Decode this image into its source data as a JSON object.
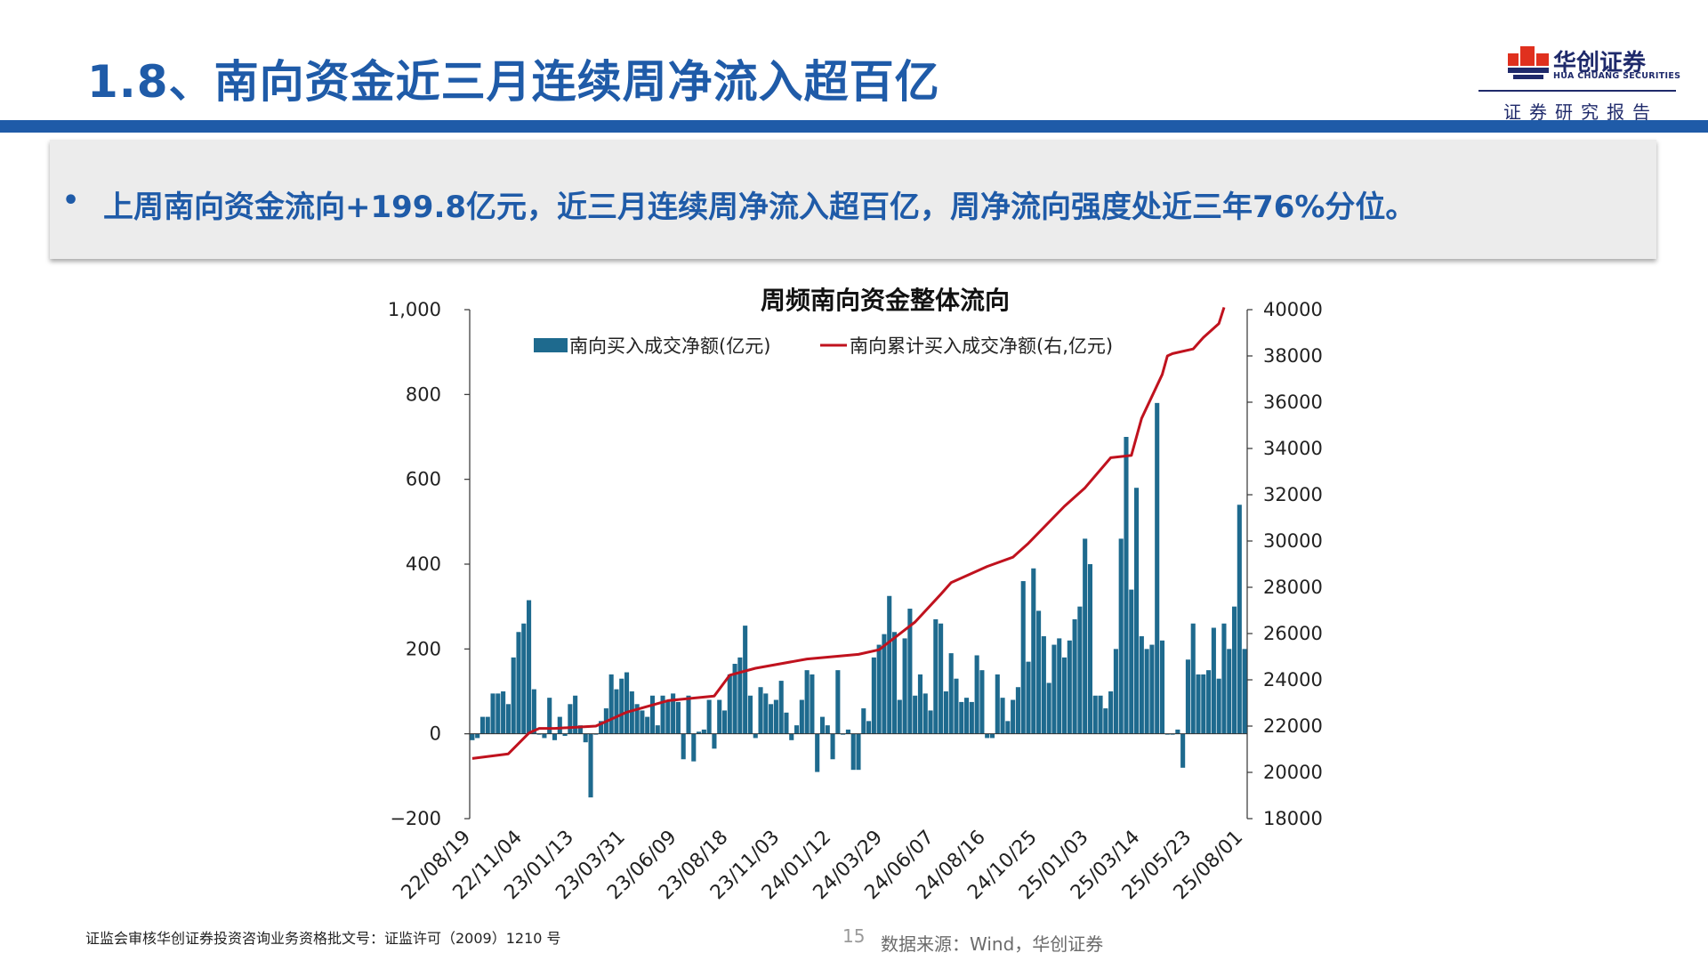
{
  "slide": {
    "title": "1.8、南向资金近三月连续周净流入超百亿",
    "summary_bullet": "•",
    "summary": "上周南向资金流向+199.8亿元，近三月连续周净流入超百亿，周净流向强度处近三年76%分位。"
  },
  "brand": {
    "name_cn": "华创证券",
    "name_en": "HUA CHUANG SECURITIES",
    "tag": "证券研究报告",
    "logo_color": "#e0301e",
    "logo_dark": "#1f2a6b",
    "title_color": "#1f5ba8"
  },
  "footer": {
    "license": "证监会审核华创证券投资咨询业务资格批文号：证监许可（2009）1210 号",
    "page": "15",
    "source": "数据来源：Wind，华创证券"
  },
  "chart_data": {
    "type": "bar+line",
    "title": "周频南向资金整体流向",
    "legend_placement": "top",
    "grid": false,
    "xlabel": "",
    "x_tick_labels": [
      "22/08/19",
      "22/11/04",
      "23/01/13",
      "23/03/31",
      "23/06/09",
      "23/08/18",
      "23/11/03",
      "24/01/12",
      "24/03/29",
      "24/06/07",
      "24/08/16",
      "24/10/25",
      "25/01/03",
      "25/03/14",
      "25/05/23",
      "25/08/01"
    ],
    "y_left": {
      "ticks": [
        "1,000",
        "800",
        "600",
        "400",
        "200",
        "0",
        "−200"
      ],
      "ylim": [
        -200,
        1000
      ]
    },
    "y_right": {
      "ticks": [
        "40000",
        "38000",
        "36000",
        "34000",
        "32000",
        "30000",
        "28000",
        "26000",
        "24000",
        "22000",
        "20000",
        "18000"
      ],
      "ylim": [
        18000,
        40000
      ]
    },
    "series": [
      {
        "name": "南向买入成交净额(亿元)",
        "type": "bar",
        "axis": "left",
        "color": "#1e6a8e",
        "values": [
          -15,
          -10,
          40,
          40,
          95,
          95,
          100,
          70,
          180,
          240,
          260,
          315,
          105,
          0,
          -10,
          85,
          -15,
          40,
          -5,
          70,
          90,
          20,
          -20,
          -150,
          0,
          30,
          60,
          140,
          105,
          130,
          145,
          100,
          70,
          55,
          40,
          90,
          20,
          90,
          80,
          95,
          75,
          -60,
          90,
          -65,
          5,
          10,
          80,
          -35,
          80,
          55,
          140,
          165,
          180,
          255,
          90,
          -10,
          110,
          95,
          70,
          80,
          125,
          50,
          -15,
          20,
          80,
          150,
          140,
          -90,
          40,
          20,
          -60,
          150,
          0,
          10,
          -85,
          -85,
          60,
          30,
          180,
          210,
          235,
          325,
          240,
          80,
          225,
          295,
          90,
          140,
          95,
          55,
          270,
          260,
          100,
          190,
          130,
          75,
          85,
          75,
          185,
          150,
          -10,
          -10,
          140,
          85,
          30,
          80,
          110,
          360,
          170,
          390,
          290,
          230,
          120,
          210,
          225,
          180,
          220,
          270,
          300,
          460,
          400,
          90,
          90,
          60,
          100,
          200,
          460,
          700,
          340,
          580,
          230,
          200,
          210,
          780,
          220,
          0,
          0,
          10,
          -80,
          175,
          260,
          140,
          140,
          150,
          250,
          130,
          260,
          200,
          300,
          540,
          200
        ],
        "value_labels": false
      },
      {
        "name": "南向累计买入成交净额(右,亿元)",
        "type": "line",
        "axis": "right",
        "color": "#c0121e",
        "x_positions": [
          0,
          7,
          11,
          13,
          16,
          24,
          30,
          38,
          47,
          50,
          55,
          65,
          75,
          79,
          86,
          91,
          93,
          100,
          105,
          108,
          115,
          119,
          124,
          128,
          130,
          134,
          135,
          136,
          140,
          142,
          145,
          146
        ],
        "values": [
          20600,
          20800,
          21700,
          21900,
          21900,
          22000,
          22600,
          23100,
          23300,
          24200,
          24500,
          24900,
          25100,
          25300,
          26500,
          27700,
          28200,
          28900,
          29300,
          29900,
          31500,
          32300,
          33600,
          33700,
          35300,
          37200,
          38000,
          38100,
          38300,
          38800,
          39400,
          40100
        ]
      }
    ]
  }
}
